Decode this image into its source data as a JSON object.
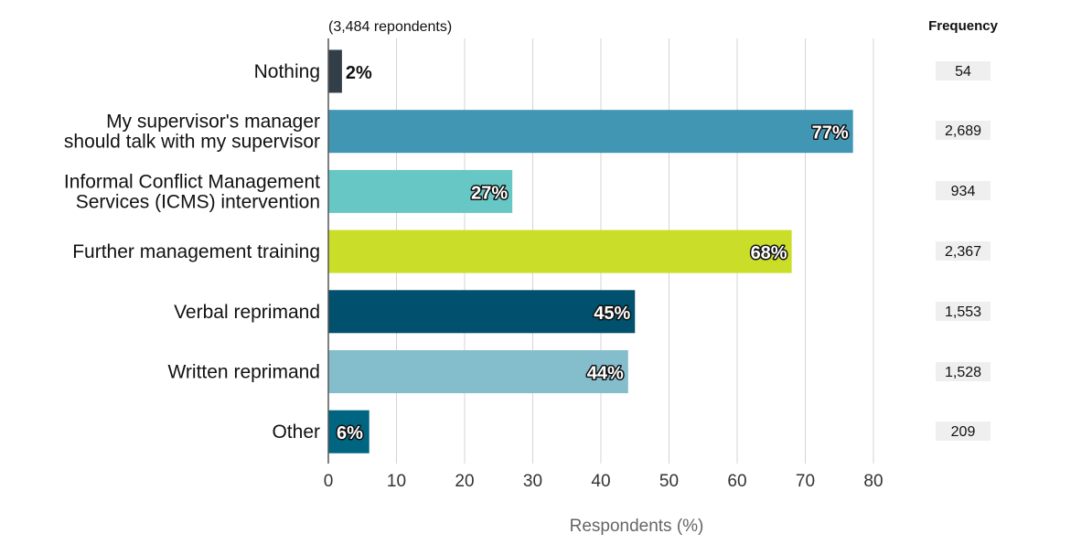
{
  "chart_data": {
    "type": "bar",
    "orientation": "horizontal",
    "subtitle": "(3,484 repondents)",
    "xlabel": "Respondents (%)",
    "ylabel": "",
    "xlim": [
      0,
      80
    ],
    "xticks": [
      "0",
      "10",
      "20",
      "30",
      "40",
      "50",
      "60",
      "70",
      "80"
    ],
    "grid": true,
    "categories": [
      "Nothing",
      "My supervisor's manager should talk with my supervisor",
      "Informal Conflict Management Services (ICMS) intervention",
      "Further management training",
      "Verbal reprimand",
      "Written reprimand",
      "Other"
    ],
    "category_lines": [
      [
        "Nothing"
      ],
      [
        "My supervisor's manager",
        "should talk with my supervisor"
      ],
      [
        "Informal Conflict Management",
        "Services (ICMS) intervention"
      ],
      [
        "Further management training"
      ],
      [
        "Verbal reprimand"
      ],
      [
        "Written reprimand"
      ],
      [
        "Other"
      ]
    ],
    "values": [
      2,
      77,
      27,
      68,
      45,
      44,
      6
    ],
    "value_labels": [
      "2%",
      "77%",
      "27%",
      "68%",
      "45%",
      "44%",
      "6%"
    ],
    "colors": [
      "#333f48",
      "#4096b3",
      "#67c7c5",
      "#cadd28",
      "#00506e",
      "#84bdcb",
      "#006580"
    ],
    "frequency_header": "Frequency",
    "frequencies": [
      "54",
      "2,689",
      "934",
      "2,367",
      "1,553",
      "1,528",
      "209"
    ]
  }
}
